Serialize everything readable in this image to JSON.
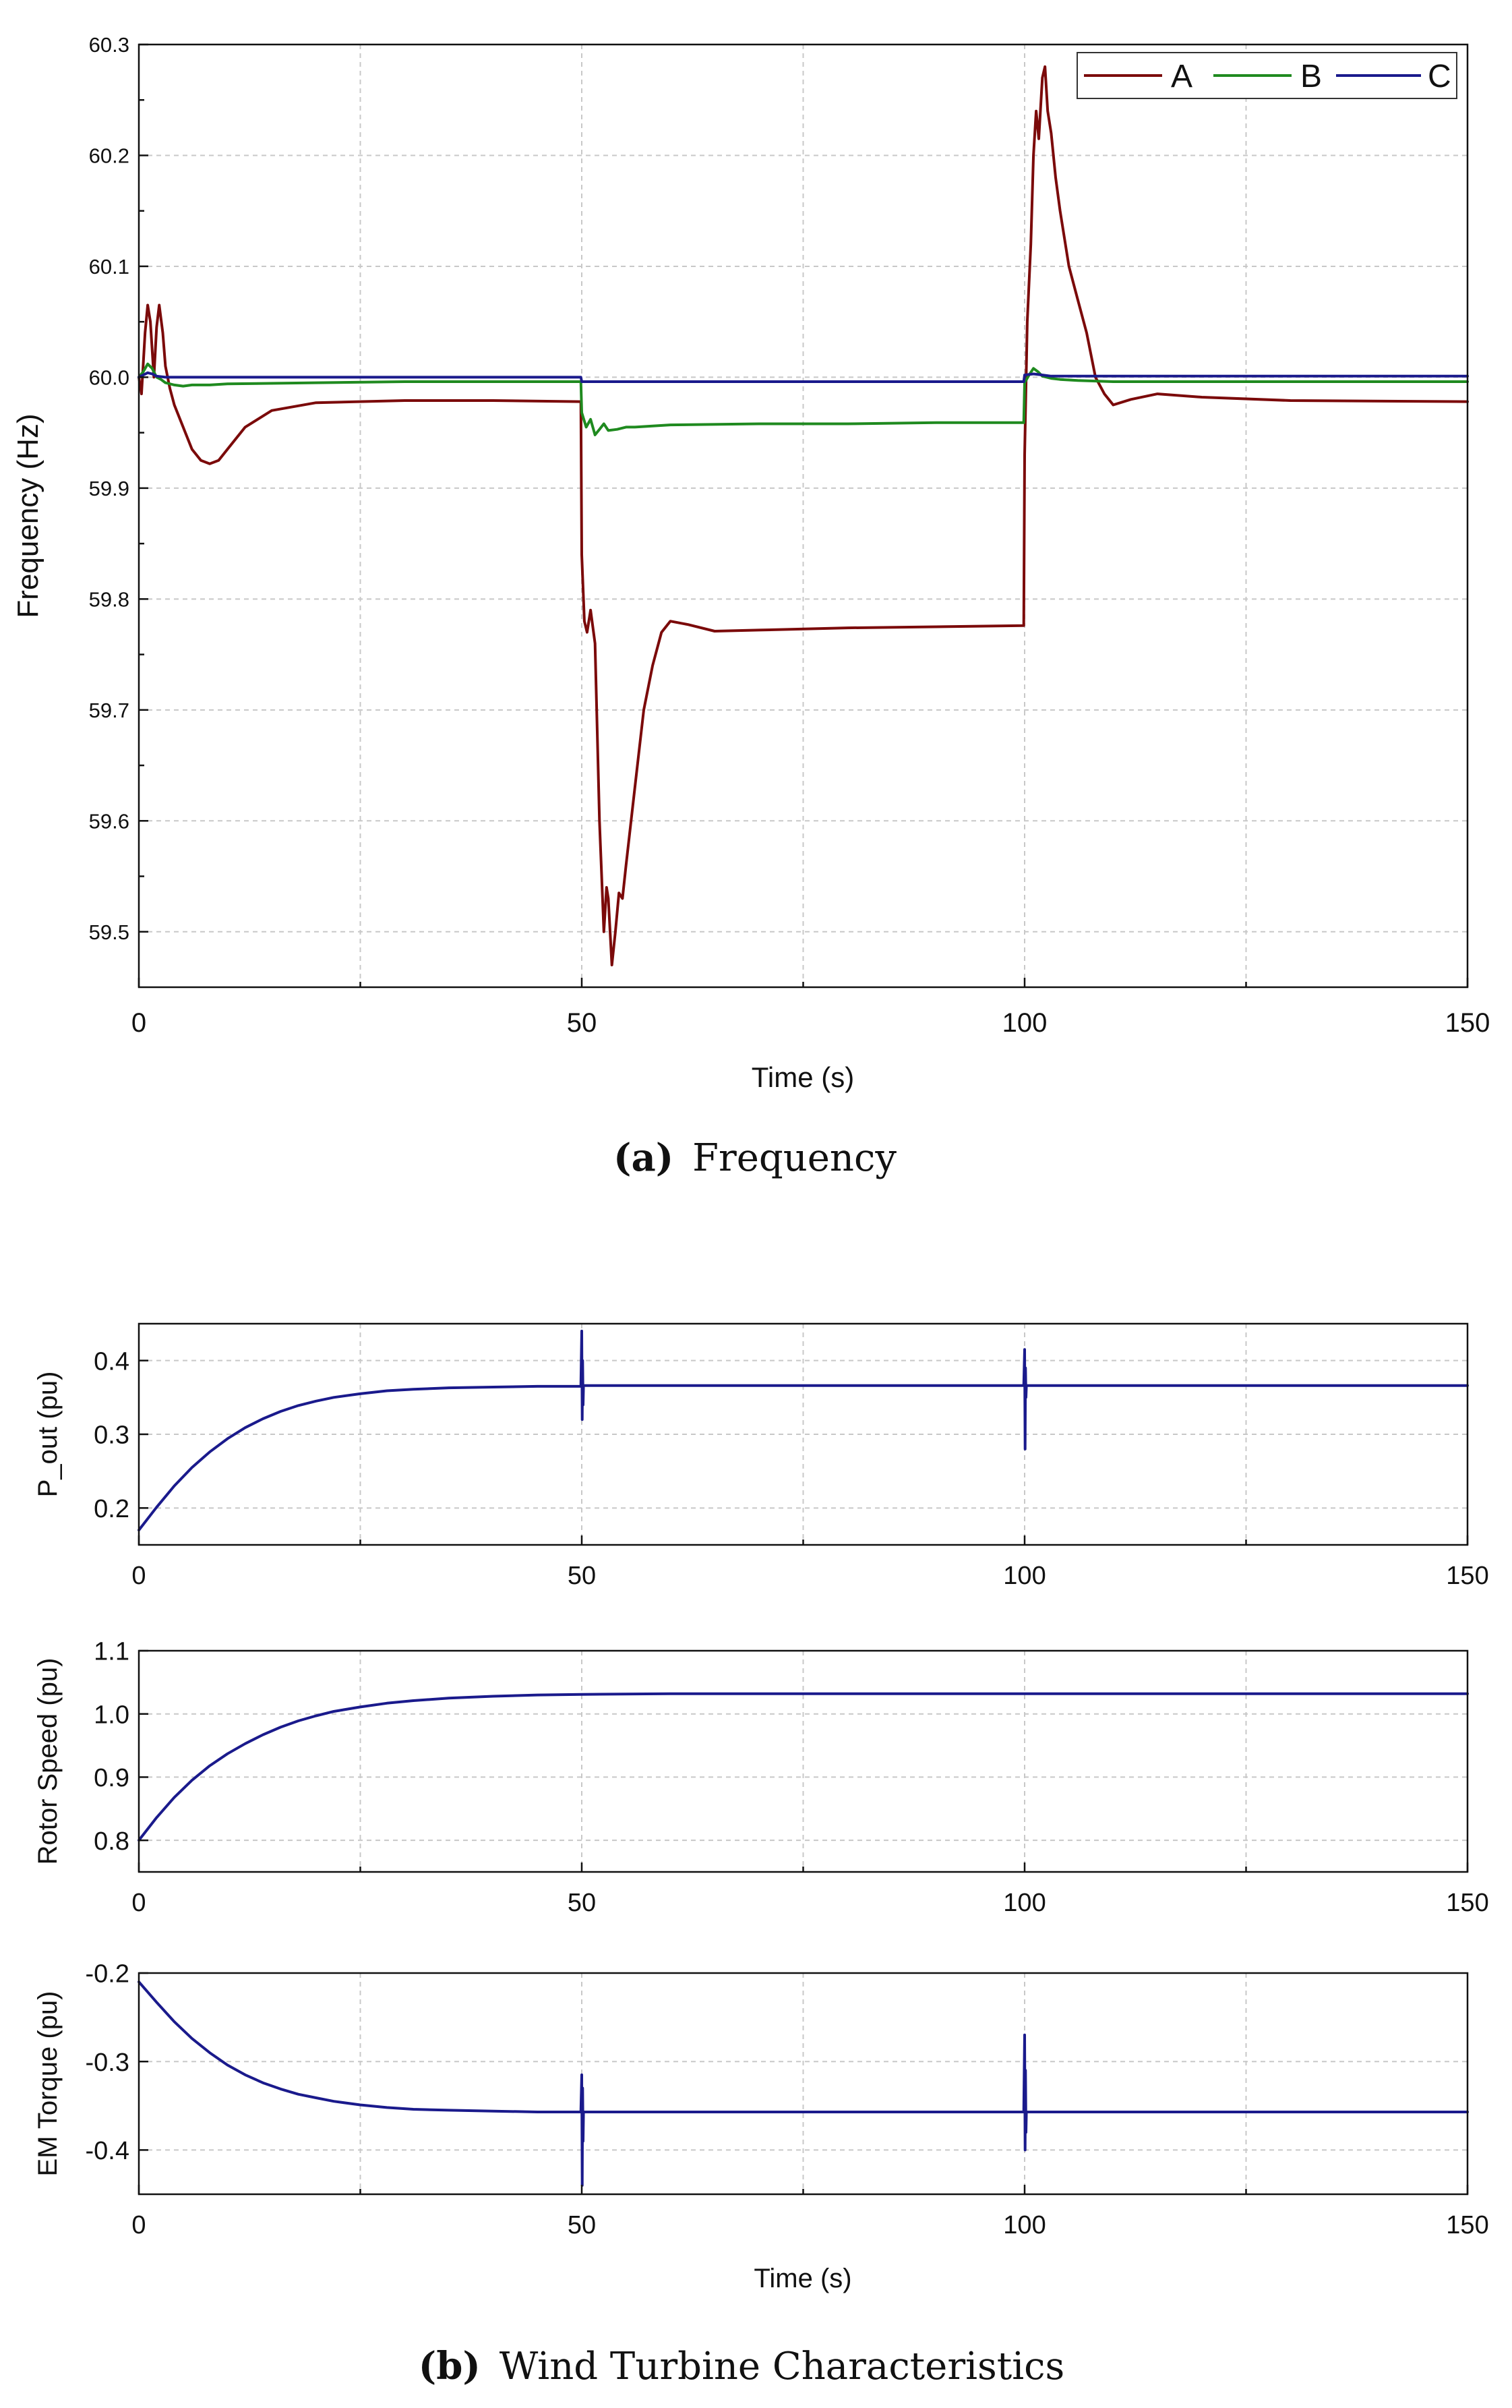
{
  "figure": {
    "caption_a": {
      "label": "(a)",
      "text": "Frequency"
    },
    "caption_b": {
      "label": "(b)",
      "text": "Wind Turbine Characteristics"
    }
  },
  "colors": {
    "A": "#7b0a0a",
    "B": "#1f8a1f",
    "C": "#1a1a8c",
    "wt": "#1a1a8c"
  },
  "chart_data": [
    {
      "id": "freq",
      "type": "line",
      "title": "",
      "xlabel": "Time (s)",
      "ylabel": "Frequency (Hz)",
      "xlim": [
        0,
        150
      ],
      "ylim": [
        59.45,
        60.3
      ],
      "xticks": [
        0,
        50,
        100,
        150
      ],
      "yticks": [
        59.5,
        59.6,
        59.7,
        59.8,
        59.9,
        60.0,
        60.1,
        60.2,
        60.3
      ],
      "xtick_labels": [
        "0",
        "50",
        "100",
        "150"
      ],
      "ytick_labels": [
        "59.5",
        "59.6",
        "59.7",
        "59.8",
        "59.9",
        "60.0",
        "60.1",
        "60.2",
        "60.3"
      ],
      "grid": true,
      "legend": "top-right",
      "series": [
        {
          "name": "A",
          "x": [
            0,
            0.3,
            0.7,
            1,
            1.3,
            1.7,
            2,
            2.3,
            2.7,
            3,
            3.5,
            4,
            5,
            6,
            7,
            8,
            9,
            10,
            12,
            15,
            20,
            30,
            40,
            49.9,
            50,
            50.3,
            50.6,
            51,
            51.5,
            52,
            52.5,
            52.8,
            53,
            53.4,
            53.8,
            54.2,
            54.6,
            55,
            56,
            57,
            58,
            59,
            60,
            62,
            65,
            70,
            80,
            90,
            99.9,
            100,
            100.3,
            100.7,
            101,
            101.3,
            101.6,
            102,
            102.3,
            102.6,
            103,
            103.5,
            104,
            105,
            106,
            107,
            108,
            109,
            110,
            112,
            115,
            120,
            130,
            150
          ],
          "y": [
            60.0,
            59.985,
            60.04,
            60.065,
            60.05,
            60.0,
            60.045,
            60.065,
            60.04,
            60.01,
            59.99,
            59.975,
            59.955,
            59.935,
            59.925,
            59.922,
            59.925,
            59.935,
            59.955,
            59.97,
            59.977,
            59.979,
            59.979,
            59.978,
            59.84,
            59.78,
            59.77,
            59.79,
            59.76,
            59.6,
            59.5,
            59.54,
            59.53,
            59.47,
            59.5,
            59.535,
            59.53,
            59.56,
            59.63,
            59.7,
            59.74,
            59.77,
            59.78,
            59.777,
            59.771,
            59.772,
            59.774,
            59.775,
            59.776,
            59.93,
            60.05,
            60.12,
            60.2,
            60.24,
            60.215,
            60.27,
            60.28,
            60.24,
            60.22,
            60.18,
            60.15,
            60.1,
            60.07,
            60.04,
            60.0,
            59.985,
            59.975,
            59.98,
            59.985,
            59.982,
            59.979,
            59.978
          ]
        },
        {
          "name": "B",
          "x": [
            0,
            0.5,
            1,
            1.5,
            2,
            2.5,
            3,
            4,
            5,
            6,
            8,
            10,
            20,
            30,
            40,
            49.9,
            50,
            50.5,
            51,
            51.5,
            52,
            52.5,
            53,
            54,
            55,
            56,
            58,
            60,
            70,
            80,
            90,
            99.9,
            100,
            100.5,
            101,
            101.5,
            102,
            103,
            104,
            106,
            110,
            120,
            150
          ],
          "y": [
            60.0,
            60.005,
            60.012,
            60.008,
            60.0,
            59.998,
            59.995,
            59.993,
            59.992,
            59.993,
            59.993,
            59.994,
            59.995,
            59.996,
            59.996,
            59.996,
            59.968,
            59.955,
            59.962,
            59.948,
            59.953,
            59.958,
            59.952,
            59.953,
            59.955,
            59.955,
            59.956,
            59.957,
            59.958,
            59.958,
            59.959,
            59.959,
            59.995,
            60.002,
            60.008,
            60.005,
            60.001,
            59.999,
            59.998,
            59.997,
            59.996,
            59.996,
            59.996
          ]
        },
        {
          "name": "C",
          "x": [
            0,
            0.5,
            1,
            1.5,
            2,
            3,
            5,
            10,
            20,
            30,
            40,
            49.9,
            50,
            55,
            60,
            70,
            80,
            90,
            99.9,
            100,
            101,
            102,
            103,
            105,
            110,
            150
          ],
          "y": [
            60.0,
            60.002,
            60.004,
            60.003,
            60.001,
            60.0,
            60.0,
            60.0,
            60.0,
            60.0,
            60.0,
            60.0,
            59.996,
            59.996,
            59.996,
            59.996,
            59.996,
            59.996,
            59.996,
            60.002,
            60.003,
            60.002,
            60.001,
            60.001,
            60.001,
            60.001
          ]
        }
      ]
    },
    {
      "id": "pout",
      "type": "line",
      "title": "",
      "xlabel": "",
      "ylabel": "P_out (pu)",
      "xlim": [
        0,
        150
      ],
      "ylim": [
        0.15,
        0.45
      ],
      "xticks": [
        0,
        50,
        100,
        150
      ],
      "yticks": [
        0.2,
        0.3,
        0.4
      ],
      "xtick_labels": [
        "0",
        "50",
        "100",
        "150"
      ],
      "ytick_labels": [
        "0.2",
        "0.3",
        "0.4"
      ],
      "grid": true,
      "legend": "none",
      "series": [
        {
          "name": "P_out",
          "x": [
            0,
            2,
            4,
            6,
            8,
            10,
            12,
            14,
            16,
            18,
            20,
            22,
            25,
            28,
            31,
            35,
            40,
            45,
            49.9,
            50,
            50.05,
            50.1,
            50.15,
            50.2,
            55,
            60,
            70,
            80,
            90,
            99.9,
            100,
            100.05,
            100.1,
            100.15,
            100.2,
            110,
            120,
            130,
            140,
            150
          ],
          "y": [
            0.17,
            0.201,
            0.23,
            0.255,
            0.276,
            0.294,
            0.309,
            0.321,
            0.331,
            0.339,
            0.345,
            0.35,
            0.355,
            0.359,
            0.361,
            0.363,
            0.364,
            0.365,
            0.365,
            0.44,
            0.32,
            0.4,
            0.34,
            0.366,
            0.366,
            0.366,
            0.366,
            0.366,
            0.366,
            0.366,
            0.415,
            0.28,
            0.39,
            0.35,
            0.366,
            0.366,
            0.366,
            0.366,
            0.366,
            0.366
          ]
        }
      ]
    },
    {
      "id": "rotor",
      "type": "line",
      "title": "",
      "xlabel": "",
      "ylabel": "Rotor Speed (pu)",
      "xlim": [
        0,
        150
      ],
      "ylim": [
        0.75,
        1.1
      ],
      "xticks": [
        0,
        50,
        100,
        150
      ],
      "yticks": [
        0.8,
        0.9,
        1.0,
        1.1
      ],
      "xtick_labels": [
        "0",
        "50",
        "100",
        "150"
      ],
      "ytick_labels": [
        "0.8",
        "0.9",
        "1.0",
        "1.1"
      ],
      "grid": true,
      "legend": "none",
      "series": [
        {
          "name": "Rotor Speed",
          "x": [
            0,
            2,
            4,
            6,
            8,
            10,
            12,
            14,
            16,
            18,
            20,
            22,
            25,
            28,
            31,
            35,
            40,
            45,
            50,
            60,
            80,
            100,
            120,
            150
          ],
          "y": [
            0.8,
            0.836,
            0.868,
            0.895,
            0.918,
            0.937,
            0.953,
            0.967,
            0.979,
            0.989,
            0.997,
            1.004,
            1.011,
            1.017,
            1.021,
            1.025,
            1.028,
            1.03,
            1.031,
            1.032,
            1.032,
            1.032,
            1.032,
            1.032
          ]
        }
      ]
    },
    {
      "id": "torque",
      "type": "line",
      "title": "",
      "xlabel": "Time (s)",
      "ylabel": "EM Torque (pu)",
      "xlim": [
        0,
        150
      ],
      "ylim": [
        -0.45,
        -0.2
      ],
      "xticks": [
        0,
        50,
        100,
        150
      ],
      "yticks": [
        -0.4,
        -0.3,
        -0.2
      ],
      "xtick_labels": [
        "0",
        "50",
        "100",
        "150"
      ],
      "ytick_labels": [
        "-0.4",
        "-0.3",
        "-0.2"
      ],
      "grid": true,
      "legend": "none",
      "series": [
        {
          "name": "EM Torque",
          "x": [
            0,
            2,
            4,
            6,
            8,
            10,
            12,
            14,
            16,
            18,
            20,
            22,
            25,
            28,
            31,
            35,
            40,
            45,
            49.9,
            50,
            50.05,
            50.1,
            50.15,
            50.2,
            55,
            60,
            70,
            80,
            90,
            99.9,
            100,
            100.05,
            100.1,
            100.15,
            100.2,
            110,
            120,
            130,
            140,
            150
          ],
          "y": [
            -0.21,
            -0.233,
            -0.255,
            -0.274,
            -0.29,
            -0.304,
            -0.315,
            -0.324,
            -0.331,
            -0.337,
            -0.341,
            -0.345,
            -0.349,
            -0.352,
            -0.354,
            -0.355,
            -0.356,
            -0.357,
            -0.357,
            -0.315,
            -0.44,
            -0.33,
            -0.39,
            -0.357,
            -0.357,
            -0.357,
            -0.357,
            -0.357,
            -0.357,
            -0.357,
            -0.27,
            -0.4,
            -0.31,
            -0.38,
            -0.357,
            -0.357,
            -0.357,
            -0.357,
            -0.357,
            -0.357
          ]
        }
      ]
    }
  ]
}
